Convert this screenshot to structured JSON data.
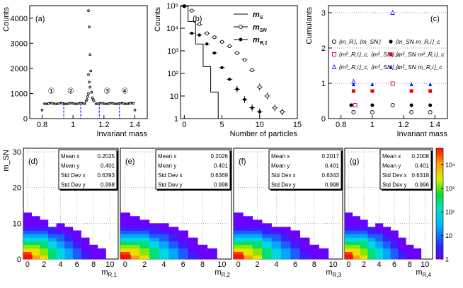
{
  "chart_data": [
    {
      "type": "scatter",
      "panel_label": "(a)",
      "ylabel": "Counts",
      "xlabel": "Invariant mass",
      "xlim": [
        0.72,
        1.48
      ],
      "ylim": [
        0,
        4500
      ],
      "xticks": [
        "0.8",
        "1",
        "1.2",
        "1.4"
      ],
      "yticks": [
        "0",
        "1000",
        "2000",
        "3000",
        "4000"
      ],
      "baseline": 600,
      "peak_points": [
        [
          1.1,
          4300
        ],
        [
          1.105,
          3650
        ],
        [
          1.11,
          2550
        ],
        [
          1.115,
          1900
        ],
        [
          1.1,
          1750
        ],
        [
          1.105,
          1450
        ],
        [
          1.11,
          1250
        ],
        [
          1.12,
          1050
        ],
        [
          1.1,
          1000
        ],
        [
          1.095,
          880
        ],
        [
          1.125,
          830
        ],
        [
          1.13,
          760
        ],
        [
          1.09,
          760
        ],
        [
          1.135,
          700
        ],
        [
          1.085,
          700
        ]
      ],
      "edge_points": [
        [
          0.8,
          340
        ],
        [
          1.4,
          340
        ]
      ],
      "region_labels": [
        "①",
        "②",
        "③",
        "④"
      ],
      "region_boundaries": [
        0.94,
        1.05,
        1.17,
        1.3
      ]
    },
    {
      "type": "step-histogram",
      "panel_label": "(b)",
      "ylabel": "Counts",
      "xlabel": "Number of particles",
      "yscale": "log",
      "ylim": [
        1,
        100000
      ],
      "xlim": [
        -0.5,
        15
      ],
      "xticks": [
        "0",
        "5",
        "10",
        "15"
      ],
      "yticks": [
        "1",
        "10",
        "10²",
        "10³",
        "10⁴",
        "10⁵"
      ],
      "series": [
        {
          "name": "m",
          "sub": "S",
          "style": "line",
          "bins": [
            0,
            1,
            2,
            3,
            4,
            5
          ],
          "values": [
            95000,
            20000,
            2000,
            200,
            15,
            1
          ]
        },
        {
          "name": "m",
          "sub": "SN",
          "style": "open-circle",
          "x": [
            0,
            1,
            2,
            3,
            4,
            5,
            6,
            7,
            8,
            9,
            10,
            11,
            12,
            13
          ],
          "values": [
            95000,
            60000,
            15000,
            6000,
            4000,
            2500,
            1600,
            800,
            400,
            140,
            25,
            10,
            3,
            2
          ]
        },
        {
          "name": "m",
          "sub": "R,1",
          "style": "filled-circle",
          "x": [
            0,
            1,
            2,
            3,
            4,
            5,
            6,
            7,
            8,
            9,
            10
          ],
          "values": [
            95000,
            6000,
            5000,
            2000,
            800,
            180,
            55,
            20,
            7,
            3,
            2
          ]
        }
      ]
    },
    {
      "type": "scatter",
      "panel_label": "(c)",
      "ylabel": "Cumulants",
      "xlabel": "Invariant mass",
      "xlim": [
        0.72,
        1.48
      ],
      "ylim": [
        0,
        3.2
      ],
      "xticks": [
        "0.8",
        "1",
        "1.2",
        "1.4"
      ],
      "yticks": [
        "0",
        "1",
        "2",
        "3"
      ],
      "dotted_lines": [
        1,
        2,
        3
      ],
      "legend": [
        {
          "marker": "open-circle",
          "color": "#000000",
          "label": "⟨m_R⟩, ⟨m_SN⟩"
        },
        {
          "marker": "filled-circle",
          "color": "#000000",
          "label": "⟨m_SN m_R,i⟩_c"
        },
        {
          "marker": "open-square",
          "color": "#e8001c",
          "label": "⟨m²_R,i⟩_c, ⟨m²_SN⟩_c"
        },
        {
          "marker": "filled-square",
          "color": "#e8001c",
          "label": "⟨m²_SN m²_R,i⟩_c"
        },
        {
          "marker": "open-triangle",
          "color": "#2020ff",
          "label": "⟨m³_R,i⟩_c, ⟨m³_SN⟩_c"
        },
        {
          "marker": "filled-triangle",
          "color": "#0018ff",
          "label": "⟨m²_SN m_R,i⟩_c"
        }
      ],
      "points": [
        {
          "marker": "open-triangle",
          "color": "#2020ff",
          "x": 1.13,
          "y": 3.0
        },
        {
          "marker": "open-triangle",
          "color": "#2020ff",
          "x": 0.88,
          "y": 1.05
        },
        {
          "marker": "filled-triangle",
          "color": "#0018ff",
          "x": 0.88,
          "y": 0.97
        },
        {
          "marker": "filled-triangle",
          "color": "#0018ff",
          "x": 1.0,
          "y": 0.97
        },
        {
          "marker": "filled-triangle",
          "color": "#0018ff",
          "x": 1.25,
          "y": 0.97
        },
        {
          "marker": "filled-triangle",
          "color": "#0018ff",
          "x": 1.37,
          "y": 0.97
        },
        {
          "marker": "open-square",
          "color": "#e8001c",
          "x": 1.13,
          "y": 0.99
        },
        {
          "marker": "filled-square",
          "color": "#e8001c",
          "x": 0.88,
          "y": 0.78
        },
        {
          "marker": "filled-square",
          "color": "#e8001c",
          "x": 1.0,
          "y": 0.78
        },
        {
          "marker": "filled-square",
          "color": "#e8001c",
          "x": 1.25,
          "y": 0.78
        },
        {
          "marker": "filled-square",
          "color": "#e8001c",
          "x": 1.37,
          "y": 0.78
        },
        {
          "marker": "filled-circle",
          "color": "#000000",
          "x": 0.865,
          "y": 0.38
        },
        {
          "marker": "open-square",
          "color": "#e8001c",
          "x": 0.89,
          "y": 0.38
        },
        {
          "marker": "filled-circle",
          "color": "#000000",
          "x": 1.0,
          "y": 0.38
        },
        {
          "marker": "filled-circle",
          "color": "#000000",
          "x": 1.25,
          "y": 0.38
        },
        {
          "marker": "filled-circle",
          "color": "#000000",
          "x": 1.37,
          "y": 0.38
        },
        {
          "marker": "open-circle",
          "color": "#000000",
          "x": 1.13,
          "y": 0.38
        },
        {
          "marker": "open-circle",
          "color": "#000000",
          "x": 0.88,
          "y": 0.18
        },
        {
          "marker": "open-circle",
          "color": "#000000",
          "x": 1.0,
          "y": 0.18
        },
        {
          "marker": "open-circle",
          "color": "#000000",
          "x": 1.25,
          "y": 0.18
        },
        {
          "marker": "open-circle",
          "color": "#000000",
          "x": 1.37,
          "y": 0.18
        }
      ]
    },
    {
      "type": "heatmap",
      "ylabel": "m_SN",
      "yticks": [
        "0",
        "10",
        "20",
        "30"
      ],
      "xticks": [
        "0",
        "2",
        "4",
        "6",
        "8",
        "10"
      ],
      "xlim": [
        -0.5,
        11
      ],
      "ylim": [
        0,
        31
      ],
      "colorbar": {
        "scale": "log",
        "ticks": [
          "1",
          "10",
          "10²",
          "10³",
          "10⁴"
        ]
      },
      "panels": [
        {
          "label": "(d)",
          "xlabel": "m_R,1",
          "mean_x": "0.2025",
          "mean_y": "0.401",
          "std_x": "0.6393",
          "std_y": "0.998"
        },
        {
          "label": "(e)",
          "xlabel": "m_R,2",
          "mean_x": "0.2026",
          "mean_y": "0.401",
          "std_x": "0.6369",
          "std_y": "0.998"
        },
        {
          "label": "(f)",
          "xlabel": "m_R,3",
          "mean_x": "0.2017",
          "mean_y": "0.401",
          "std_x": "0.6343",
          "std_y": "0.998"
        },
        {
          "label": "(g)",
          "xlabel": "m_R,4",
          "mean_x": "0.2008",
          "mean_y": "0.401",
          "std_x": "0.6318",
          "std_y": "0.996"
        }
      ],
      "stat_labels": {
        "mean_x": "Mean x",
        "mean_y": "Mean y",
        "std_x": "Std Dev x",
        "std_y": "Std Dev y"
      }
    }
  ]
}
